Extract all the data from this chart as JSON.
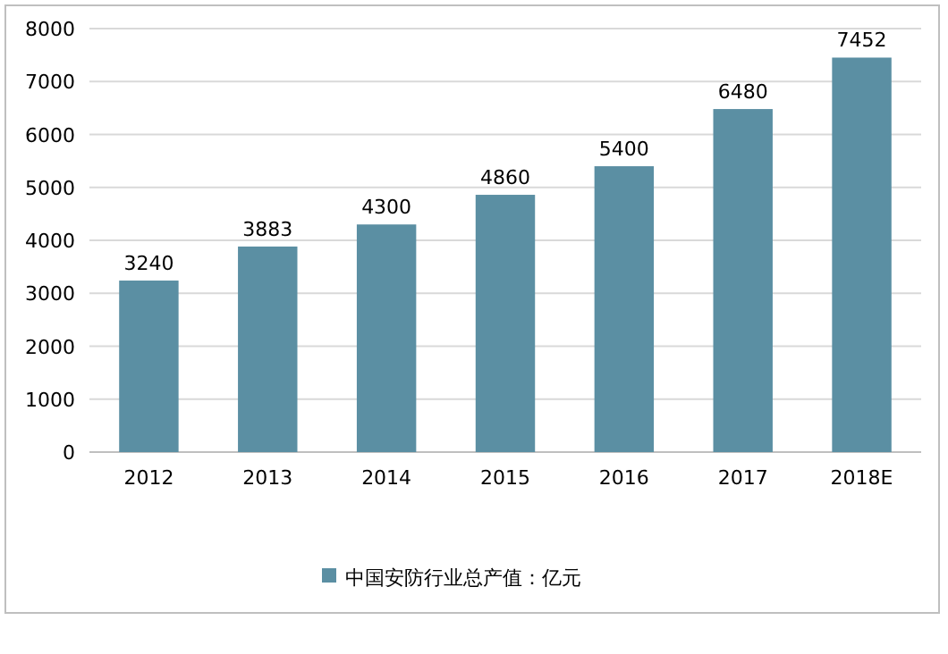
{
  "chart_data": {
    "type": "bar",
    "categories": [
      "2012",
      "2013",
      "2014",
      "2015",
      "2016",
      "2017",
      "2018E"
    ],
    "series": [
      {
        "name": "中国安防行业总产值：亿元",
        "color": "#5b8fa3",
        "values": [
          3240,
          3883,
          4300,
          4860,
          5400,
          6480,
          7452
        ]
      }
    ],
    "ylim": [
      0,
      8000
    ],
    "yticks": [
      0,
      1000,
      2000,
      3000,
      4000,
      5000,
      6000,
      7000,
      8000
    ],
    "grid": "y",
    "legend": "bottom",
    "data_labels": true
  }
}
